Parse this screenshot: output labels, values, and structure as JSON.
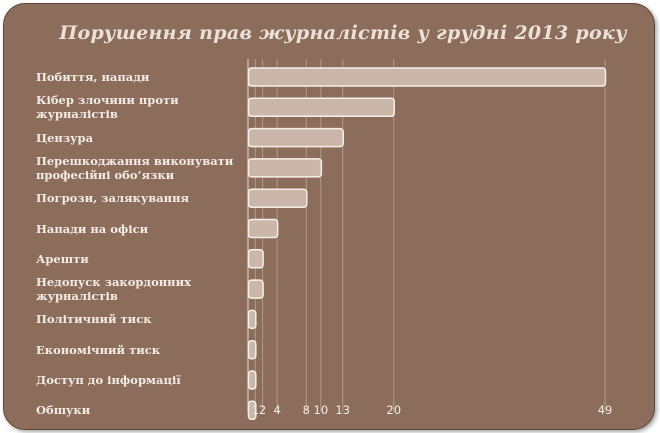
{
  "chart_data": {
    "type": "bar",
    "orientation": "horizontal",
    "title": "Порушення прав журналістів у грудні 2013 року",
    "categories": [
      "Побиття, напади",
      "Кібер злочини проти журналістів",
      "Цензура",
      "Перешкоджання виконувати професійні обо’язки",
      "Погрози, залякування",
      "Напади на офіси",
      "Арешти",
      "Недопуск закордонних журналістів",
      "Політичний тиск",
      "Економічний тиск",
      "Доступ до інформації",
      "Обшуки"
    ],
    "values": [
      49,
      20,
      13,
      10,
      8,
      4,
      2,
      2,
      1,
      1,
      1,
      1
    ],
    "x_ticks": [
      1,
      2,
      4,
      8,
      10,
      13,
      20,
      49
    ],
    "tick_labels": [
      "1",
      "2",
      "4",
      "8",
      "10",
      "13",
      "20",
      "49"
    ],
    "xlim": [
      0,
      49
    ],
    "grid": "vertical",
    "colors": {
      "background": "#8c6d5b",
      "bar_fill": "#cbb7aa",
      "bar_stroke": "#f6efe9",
      "gridline": "#b39a8a",
      "text": "#f3ebe5",
      "title": "#ece1d9"
    }
  }
}
